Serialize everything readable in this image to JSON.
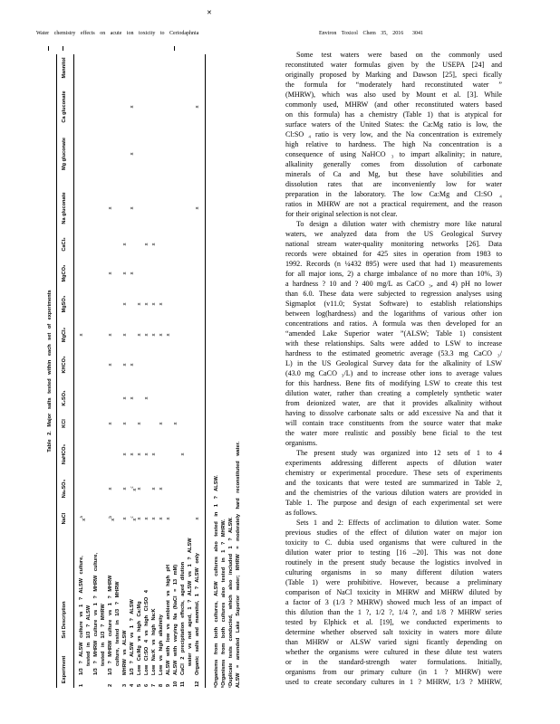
{
  "header": {
    "running_title": "Water chemistry effects on acute ion toxicity to Ceriodaphnia",
    "journal": "Environ Toxicol Chem 35, 2016",
    "page_number": "3041",
    "stray_mark": "✕"
  },
  "table": {
    "caption": "Table 2. Major salts tested within each set of experiments",
    "columns": [
      {
        "key": "experiment",
        "label": "Experiment"
      },
      {
        "key": "description",
        "label": "Set Description"
      },
      {
        "key": "NaCl",
        "label": "NaCl"
      },
      {
        "key": "Na2SO4",
        "label": "Na₂SO₄"
      },
      {
        "key": "NaHCO3",
        "label": "NaHCO₃"
      },
      {
        "key": "KCl",
        "label": "KCl"
      },
      {
        "key": "K2SO4",
        "label": "K₂SO₄"
      },
      {
        "key": "KHCO3",
        "label": "KHCO₃"
      },
      {
        "key": "MgCl2",
        "label": "MgCl₂"
      },
      {
        "key": "MgSO4",
        "label": "MgSO₄"
      },
      {
        "key": "MgCO3",
        "label": "MgCO₃"
      },
      {
        "key": "CaCl2",
        "label": "CaCl₂"
      },
      {
        "key": "Na_gluconate",
        "label": "Na gluconate"
      },
      {
        "key": "Mg_gluconate",
        "label": "Mg gluconate"
      },
      {
        "key": "Ca_gluconate",
        "label": "Ca gluconate"
      },
      {
        "key": "Mannitol",
        "label": "Mannitol"
      }
    ],
    "mark_symbol": "x",
    "rows": [
      {
        "set": "1",
        "lines": [
          "1/3 ? ALSW culture vs 1 ? ALSW culture,",
          "tested in 1/3 ? ALSW",
          "1/3 ? MHRW culture vs 1 ? MHRW culture,",
          "tested in 1/3 ? MHRW"
        ],
        "marks": [
          {
            "col": "NaCl",
            "note": "a"
          },
          {
            "col": "MgCl2"
          }
        ]
      },
      {
        "set": "2",
        "lines": [
          "1/3 ? MHRW culture vs 1 ? MHRW",
          "culture, tested in 1/3 ? MHRW"
        ],
        "marks": [
          {
            "col": "NaCl",
            "note": "b"
          },
          {
            "col": "Na2SO4"
          },
          {
            "col": "KCl"
          },
          {
            "col": "KHCO3"
          },
          {
            "col": "MgCl2"
          },
          {
            "col": "MgCO3"
          },
          {
            "col": "Na_gluconate"
          }
        ]
      },
      {
        "set": "3",
        "lines": [
          "MHRW vs ALSW"
        ],
        "marks": [
          {
            "col": "NaCl"
          },
          {
            "col": "Na2SO4"
          },
          {
            "col": "NaHCO3"
          },
          {
            "col": "KCl"
          },
          {
            "col": "K2SO4"
          },
          {
            "col": "KHCO3"
          },
          {
            "col": "MgCl2"
          },
          {
            "col": "MgSO4"
          },
          {
            "col": "MgCO3"
          },
          {
            "col": "CaCl2"
          }
        ]
      },
      {
        "set": "4",
        "lines": [
          "1/3 ? ALSW vs 1 ? ALSW"
        ],
        "marks": [
          {
            "col": "NaCl",
            "note": "c"
          },
          {
            "col": "Na2SO4",
            "note": "c"
          },
          {
            "col": "NaHCO3"
          },
          {
            "col": "K2SO4"
          },
          {
            "col": "KHCO3"
          },
          {
            "col": "MgCO3"
          },
          {
            "col": "Na_gluconate"
          },
          {
            "col": "Mg_gluconate"
          },
          {
            "col": "Ca_gluconate"
          }
        ]
      },
      {
        "set": "5",
        "lines": [
          "Low Ca:Mg vs high Ca:Mg"
        ],
        "marks": [
          {
            "col": "NaCl"
          },
          {
            "col": "Na2SO4"
          },
          {
            "col": "NaHCO3"
          },
          {
            "col": "KCl"
          },
          {
            "col": "MgCl2"
          },
          {
            "col": "MgSO4"
          }
        ]
      },
      {
        "set": "6",
        "lines": [
          "Low Cl:SO 4 vs high Cl:SO 4"
        ],
        "marks": [
          {
            "col": "NaCl"
          },
          {
            "col": "NaHCO3"
          },
          {
            "col": "K2SO4"
          },
          {
            "col": "MgCl2"
          },
          {
            "col": "MgSO4"
          },
          {
            "col": "CaCl2"
          }
        ]
      },
      {
        "set": "7",
        "lines": [
          "Low Na:K vs high Na:K"
        ],
        "marks": [
          {
            "col": "NaCl"
          },
          {
            "col": "Na2SO4"
          },
          {
            "col": "NaHCO3"
          },
          {
            "col": "MgCl2"
          },
          {
            "col": "MgSO4"
          },
          {
            "col": "CaCl2"
          }
        ]
      },
      {
        "set": "8",
        "lines": [
          "Low vs high alkalinity"
        ],
        "marks": [
          {
            "col": "NaCl"
          },
          {
            "col": "Na2SO4"
          },
          {
            "col": "KCl"
          },
          {
            "col": "MgCl2"
          },
          {
            "col": "MgSO4"
          }
        ]
      },
      {
        "set": "9",
        "lines": [
          "ALSW with low vs ambient vs high pH"
        ],
        "marks": [
          {
            "col": "NaCl"
          },
          {
            "col": "MgCl2"
          }
        ]
      },
      {
        "set": "10",
        "lines": [
          "ALSW with varying Na (NaCl = 13 mM)"
        ],
        "marks": [
          {
            "col": "KCl"
          }
        ]
      },
      {
        "set": "11",
        "lines": [
          "CaCl 2 precipitation effects, aged dilution",
          "water vs not aged, 1 ? ALSW vs 1 ? ALSW"
        ],
        "marks": [
          {
            "col": "NaHCO3"
          }
        ]
      },
      {
        "set": "12",
        "lines": [
          "Organic salts and mannitol, 1 ? ALSW only"
        ],
        "marks": [
          {
            "col": "NaCl"
          },
          {
            "col": "Na_gluconate"
          },
          {
            "col": "Ca_gluconate"
          }
        ]
      }
    ],
    "footnotes": [
      "ᵃOrganisms from both cultures, ALSW cultures also tested in 1 ? ALSW.",
      "ᵇOrganisms from both cultures also tested in 1 ? MHRW.",
      "ᶜDuplicate tests conducted, which also included 1 ? ALSW.",
      "ALSW = amended Lake Superior water; MHRW = moderately hard reconstituted water."
    ]
  },
  "body": {
    "paragraphs": [
      {
        "lines": [
          "Some test waters were based on the commonly used",
          "reconstituted water formulas given by the USEPA [24] and",
          "originally proposed by Marking and Dawson [25], speci fically",
          "the formula for “moderately hard reconstituted water ”",
          "(MHRW), which was also used by Mount et al. [3]. While",
          "commonly used, MHRW (and other reconstituted waters based",
          "on this formula) has a chemistry (Table 1) that is atypical for",
          "surface waters of the United States: the Ca:Mg ratio is low, the",
          "Cl:SO ₄ ratio is very low, and the Na concentration is extremely",
          "high relative to hardness. The high Na concentration is a",
          "consequence of using NaHCO ₃ to impart alkalinity; in nature,",
          "alkalinity generally comes from dissolution of carbonate",
          "minerals of Ca and Mg, but these have solubilities and",
          "dissolution rates that are inconveniently low for water",
          "preparation in the laboratory. The low Ca:Mg and Cl:SO ₄",
          "ratios in MHRW are not a practical requirement, and the reason",
          "for their original selection is not clear."
        ]
      },
      {
        "lines": [
          "To design a dilution water with chemistry more like natural",
          "waters, we analyzed data from the US Geological Survey",
          "national stream water-quality monitoring networks [26]. Data",
          "records were obtained for 425 sites in operation from 1983 to",
          "1992. Records (n ¼432 895) were used that had 1) measurements",
          "for all major ions, 2) a charge imbalance of no more than 10%, 3)",
          "a hardness ? 10 and ? 400 mg/L as CaCO ₃, and 4) pH no lower",
          "than 6.0. These data were subjected to regression analyses using",
          "Sigmaplot (v11.0; Systat Software) to establish relationships",
          "between log(hardness) and the logarithms of various other ion",
          "concentrations and ratios. A formula was then developed for an",
          "“amended Lake Superior water ”(ALSW; Table 1) consistent",
          "with these relationships. Salts were added to LSW to increase",
          "hardness to the estimated geometric average (53.3 mg CaCO ₃/",
          "L) in the US Geological Survey data for the alkalinity of LSW",
          "(43.0 mg CaCO ₃/L) and to increase other ions to average values",
          "for this hardness. Bene fits of modifying LSW to create this test",
          "dilution water, rather than creating a completely synthetic water",
          "from deionized water, are that it provides alkalinity without",
          "having to dissolve carbonate salts or add excessive Na and that it",
          "will contain trace constituents from the source water that make",
          "the water more realistic and possibly bene ficial to the test",
          "organisms."
        ]
      },
      {
        "lines": [
          "The present study was organized into 12 sets of 1 to 4",
          "experiments addressing different aspects of dilution water",
          "chemistry or experimental procedure. These sets of experiments",
          "and the toxicants that were tested are summarized in Table 2,",
          "and the chemistries of the various dilution waters are provided in",
          "Table 1. The purpose and design of each experimental set were",
          "as follows."
        ]
      },
      {
        "lines": [
          "Sets 1 and 2: Effects of acclimation to dilution water. Some",
          "previous studies of the effect of dilution water on major ion",
          "toxicity to C. dubia used organisms that were cultured in the",
          "dilution water prior to testing [16 –20]. This was not done",
          "routinely in the present study because the logistics involved in",
          "culturing organisms in so many different dilution waters",
          "(Table 1) were prohibitive. However, because a preliminary",
          "comparison of NaCl toxicity in MHRW and MHRW diluted by",
          "a factor of 3 (1/3 ? MHRW) showed much less of an impact of",
          "this dilution than the 1 ?, 1/2 ?, 1/4 ?, and 1/8 ? MHRW series",
          "tested by Elphick et al. [19], we conducted experiments to",
          "determine whether observed salt toxicity in waters more dilute",
          "than MHRW or ALSW varied signi ficantly depending on",
          "whether the organisms were cultured in these dilute test waters",
          "or in the standard-strength water formulations. Initially,",
          "organisms from our primary culture (in 1 ? MHRW) were",
          "used to create secondary cultures in 1 ? MHRW, 1/3 ? MHRW,"
        ],
        "continues": true
      }
    ]
  }
}
